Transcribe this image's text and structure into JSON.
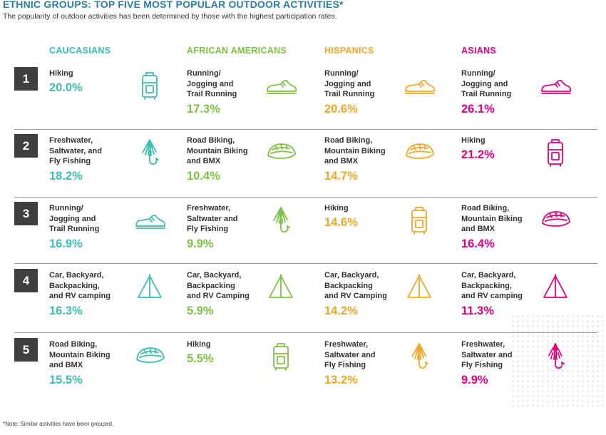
{
  "title": "ETHNIC GROUPS:  TOP FIVE MOST POPULAR OUTDOOR ACTIVITIES*",
  "subtitle": "The popularity of outdoor activities has been determined by those with the highest participation rates.",
  "footnote": "*Note: Similar activities have been grouped.",
  "colors": {
    "title": "#2a7fa5",
    "caucasians": "#3bbfb0",
    "african_americans": "#7dc242",
    "hispanics": "#f5a623",
    "asians": "#e6007e",
    "rank_box": "#3f3f3f"
  },
  "columns": [
    {
      "header": "CAUCASIANS",
      "color": "#3bbfb0",
      "rows": [
        {
          "activity": [
            "Hiking"
          ],
          "percent": "20.0%",
          "icon": "backpack-icon"
        },
        {
          "activity": [
            "Freshwater,",
            "Saltwater, and",
            "Fly Fishing"
          ],
          "percent": "18.2%",
          "icon": "fishing-lure-icon"
        },
        {
          "activity": [
            "Running/",
            "Jogging and",
            "Trail Running"
          ],
          "percent": "16.9%",
          "icon": "running-shoe-icon"
        },
        {
          "activity": [
            "Car, Backyard,",
            "Backpacking,",
            "and RV camping"
          ],
          "percent": "16.3%",
          "icon": "tent-icon"
        },
        {
          "activity": [
            "Road Biking,",
            "Mountain Biking",
            "and BMX"
          ],
          "percent": "15.5%",
          "icon": "bike-helmet-icon"
        }
      ]
    },
    {
      "header": "AFRICAN AMERICANS",
      "color": "#7dc242",
      "rows": [
        {
          "activity": [
            "Running/",
            "Jogging and",
            "Trail Running"
          ],
          "percent": "17.3%",
          "icon": "running-shoe-icon"
        },
        {
          "activity": [
            "Road Biking,",
            "Mountain Biking",
            "and BMX"
          ],
          "percent": "10.4%",
          "icon": "bike-helmet-icon"
        },
        {
          "activity": [
            "Freshwater,",
            "Saltwater and",
            "Fly Fishing"
          ],
          "percent": "9.9%",
          "icon": "fishing-lure-icon"
        },
        {
          "activity": [
            "Car, Backyard,",
            "Backpacking",
            "and RV Camping"
          ],
          "percent": "5.9%",
          "icon": "tent-icon"
        },
        {
          "activity": [
            "Hiking"
          ],
          "percent": "5.5%",
          "icon": "backpack-icon"
        }
      ]
    },
    {
      "header": "HISPANICS",
      "color": "#f5a623",
      "rows": [
        {
          "activity": [
            "Running/",
            "Jogging and",
            "Trail Running"
          ],
          "percent": "20.6%",
          "icon": "running-shoe-icon"
        },
        {
          "activity": [
            "Road Biking,",
            "Mountain Biking",
            "and BMX"
          ],
          "percent": "14.7%",
          "icon": "bike-helmet-icon"
        },
        {
          "activity": [
            "Hiking"
          ],
          "percent": "14.6%",
          "icon": "backpack-icon"
        },
        {
          "activity": [
            "Car, Backyard,",
            "Backpacking",
            "and RV Camping"
          ],
          "percent": "14.2%",
          "icon": "tent-icon"
        },
        {
          "activity": [
            "Freshwater,",
            "Saltwater and",
            "Fly Fishing"
          ],
          "percent": "13.2%",
          "icon": "fishing-lure-icon"
        }
      ]
    },
    {
      "header": "ASIANS",
      "color": "#e6007e",
      "rows": [
        {
          "activity": [
            "Running/",
            "Jogging and",
            "Trail Running"
          ],
          "percent": "26.1%",
          "icon": "running-shoe-icon"
        },
        {
          "activity": [
            "Hiking"
          ],
          "percent": "21.2%",
          "icon": "backpack-icon"
        },
        {
          "activity": [
            "Road Biking,",
            "Mountain Biking",
            "and BMX"
          ],
          "percent": "16.4%",
          "icon": "bike-helmet-icon"
        },
        {
          "activity": [
            "Car, Backyard,",
            "Backpacking,",
            "and RV camping"
          ],
          "percent": "11.3%",
          "icon": "tent-icon"
        },
        {
          "activity": [
            "Freshwater,",
            "Saltwater and",
            "Fly Fishing"
          ],
          "percent": "9.9%",
          "icon": "fishing-lure-icon"
        }
      ]
    }
  ],
  "ranks": [
    "1",
    "2",
    "3",
    "4",
    "5"
  ]
}
